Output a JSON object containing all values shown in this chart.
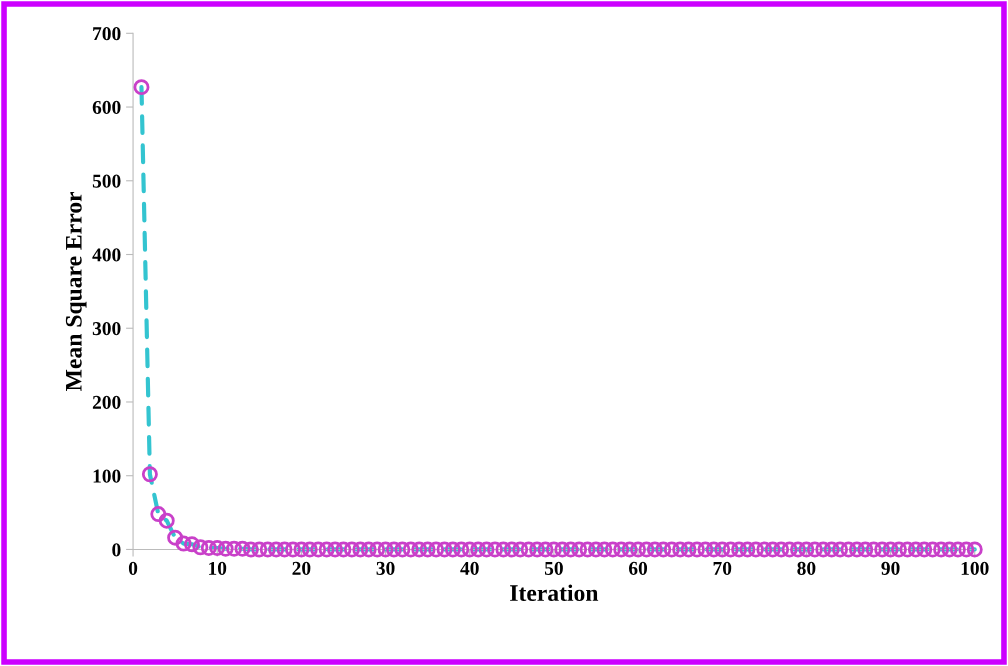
{
  "chart_data": {
    "type": "line",
    "xlabel": "Iteration",
    "ylabel": "Mean Square Error",
    "xlim": [
      0,
      100
    ],
    "xticks": [
      0,
      10,
      20,
      30,
      40,
      50,
      60,
      70,
      80,
      90,
      100
    ],
    "ylim": [
      0,
      700
    ],
    "yticks": [
      0,
      100,
      200,
      300,
      400,
      500,
      600,
      700
    ],
    "grid": false,
    "legend": false,
    "x": [
      1,
      2,
      3,
      4,
      5,
      6,
      7,
      8,
      9,
      10,
      11,
      12,
      13,
      14,
      15,
      16,
      17,
      18,
      19,
      20,
      21,
      22,
      23,
      24,
      25,
      26,
      27,
      28,
      29,
      30,
      31,
      32,
      33,
      34,
      35,
      36,
      37,
      38,
      39,
      40,
      41,
      42,
      43,
      44,
      45,
      46,
      47,
      48,
      49,
      50,
      51,
      52,
      53,
      54,
      55,
      56,
      57,
      58,
      59,
      60,
      61,
      62,
      63,
      64,
      65,
      66,
      67,
      68,
      69,
      70,
      71,
      72,
      73,
      74,
      75,
      76,
      77,
      78,
      79,
      80,
      81,
      82,
      83,
      84,
      85,
      86,
      87,
      88,
      89,
      90,
      91,
      92,
      93,
      94,
      95,
      96,
      97,
      98,
      99,
      100
    ],
    "series": [
      {
        "color": "#33c4d0",
        "line_style": "dashed",
        "marker": "none",
        "values": [
          627,
          102,
          48,
          39,
          16,
          8,
          7,
          3,
          2,
          2,
          1,
          1,
          1,
          0,
          0,
          0,
          0,
          0,
          0,
          0,
          0,
          0,
          0,
          0,
          0,
          0,
          0,
          0,
          0,
          0,
          0,
          0,
          0,
          0,
          0,
          0,
          0,
          0,
          0,
          0,
          0,
          0,
          0,
          0,
          0,
          0,
          0,
          0,
          0,
          0,
          0,
          0,
          0,
          0,
          0,
          0,
          0,
          0,
          0,
          0,
          0,
          0,
          0,
          0,
          0,
          0,
          0,
          0,
          0,
          0,
          0,
          0,
          0,
          0,
          0,
          0,
          0,
          0,
          0,
          0,
          0,
          0,
          0,
          0,
          0,
          0,
          0,
          0,
          0,
          0,
          0,
          0,
          0,
          0,
          0,
          0,
          0,
          0,
          0,
          0
        ]
      },
      {
        "type": "scatter",
        "color": "#c940c9",
        "marker": "circle",
        "values": [
          627,
          102,
          48,
          39,
          16,
          8,
          7,
          3,
          2,
          2,
          1,
          1,
          1,
          0,
          0,
          0,
          0,
          0,
          0,
          0,
          0,
          0,
          0,
          0,
          0,
          0,
          0,
          0,
          0,
          0,
          0,
          0,
          0,
          0,
          0,
          0,
          0,
          0,
          0,
          0,
          0,
          0,
          0,
          0,
          0,
          0,
          0,
          0,
          0,
          0,
          0,
          0,
          0,
          0,
          0,
          0,
          0,
          0,
          0,
          0,
          0,
          0,
          0,
          0,
          0,
          0,
          0,
          0,
          0,
          0,
          0,
          0,
          0,
          0,
          0,
          0,
          0,
          0,
          0,
          0,
          0,
          0,
          0,
          0,
          0,
          0,
          0,
          0,
          0,
          0,
          0,
          0,
          0,
          0,
          0,
          0,
          0,
          0,
          0,
          0
        ]
      }
    ]
  }
}
